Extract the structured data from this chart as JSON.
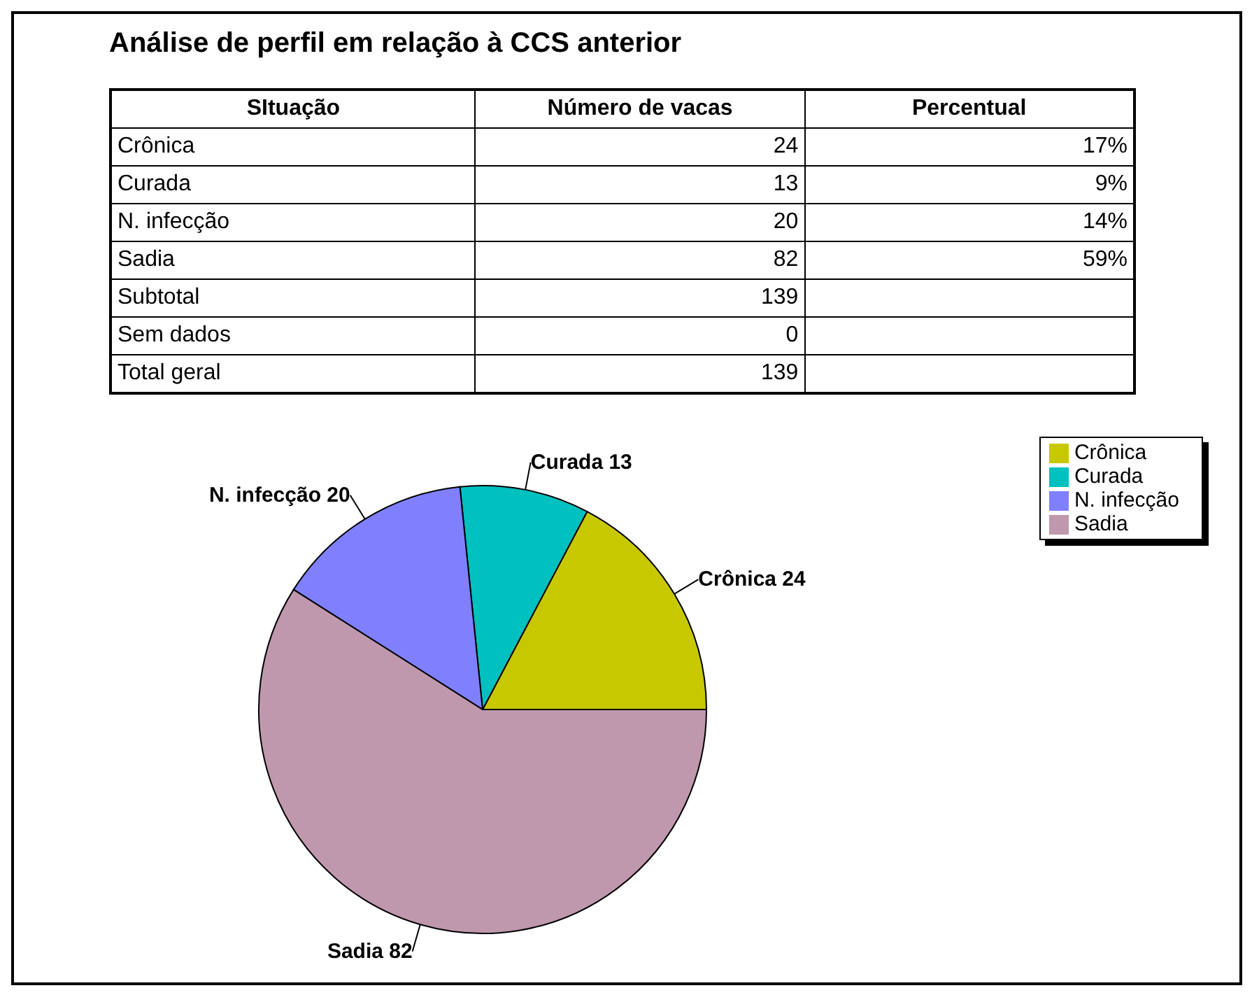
{
  "chart_data": [
    {
      "type": "other",
      "title": "Análise de perfil em relação à CCS anterior",
      "xlabel": "SItuação",
      "categories": [
        "Crônica",
        "Curada",
        "N. infecção",
        "Sadia",
        "Subtotal",
        "Sem dados",
        "Total geral"
      ],
      "series": [
        {
          "name": "Número de vacas",
          "values": [
            24,
            13,
            20,
            82,
            139,
            0,
            139
          ]
        },
        {
          "name": "Percentual",
          "values": [
            17,
            9,
            14,
            59,
            null,
            null,
            null
          ],
          "value_labels": [
            "17%",
            "9%",
            "14%",
            "59%",
            null,
            null,
            null
          ]
        }
      ],
      "data_labels": true
    },
    {
      "type": "pie",
      "categories": [
        "Crônica",
        "Curada",
        "N. infecção",
        "Sadia"
      ],
      "values": [
        24,
        13,
        20,
        82
      ],
      "colors": [
        "#c8c800",
        "#00c0c0",
        "#8080ff",
        "#c098ae"
      ],
      "value_labels": [
        "Crônica 24",
        "Curada 13",
        "N. infecção 20",
        "Sadia 82"
      ],
      "legend": "top right"
    }
  ]
}
